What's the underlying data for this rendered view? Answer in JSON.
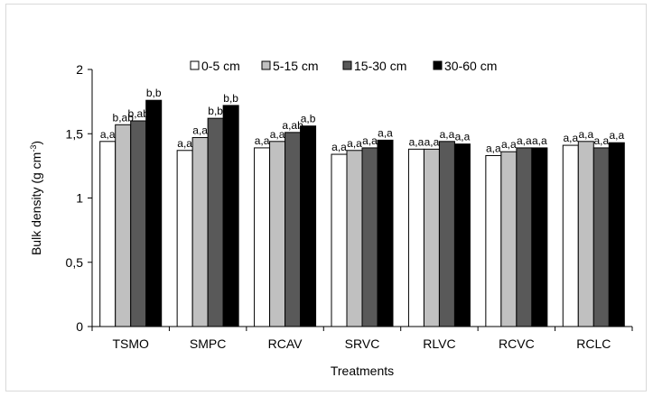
{
  "chart_data": {
    "type": "bar",
    "title": "",
    "xlabel": "Treatments",
    "ylabel": "Bulk density (g cm",
    "ylabel_superscript": "-3",
    "ylabel_suffix": ")",
    "ylim": [
      0,
      2
    ],
    "yticks": [
      "0",
      "0,5",
      "1",
      "1,5",
      "2"
    ],
    "grid": false,
    "legend_position": "top",
    "categories": [
      "TSMO",
      "SMPC",
      "RCAV",
      "SRVC",
      "RLVC",
      "RCVC",
      "RCLC"
    ],
    "series": [
      {
        "name": "0-5 cm",
        "color": "#ffffff",
        "values": [
          1.44,
          1.37,
          1.39,
          1.34,
          1.38,
          1.33,
          1.41
        ],
        "labels": [
          "a,a",
          "a,a",
          "a,a",
          "a,a",
          "a,a",
          "a,a",
          "a,a"
        ]
      },
      {
        "name": "5-15 cm",
        "color": "#c0c0c0",
        "values": [
          1.57,
          1.47,
          1.44,
          1.37,
          1.38,
          1.36,
          1.44
        ],
        "labels": [
          "b,ab",
          "a,a",
          "a,a",
          "a,a",
          "a,a",
          "a,a",
          "a,a"
        ]
      },
      {
        "name": "15-30 cm",
        "color": "#595959",
        "values": [
          1.6,
          1.62,
          1.51,
          1.39,
          1.44,
          1.39,
          1.39
        ],
        "labels": [
          "b,ab",
          "b,b",
          "a,ab",
          "a,a",
          "a,a",
          "a,a",
          "a,a"
        ]
      },
      {
        "name": "30-60 cm",
        "color": "#000000",
        "values": [
          1.76,
          1.72,
          1.56,
          1.45,
          1.42,
          1.39,
          1.43
        ],
        "labels": [
          "b,b",
          "b,b",
          "a,b",
          "a,a",
          "a,a",
          "a,a",
          "a,a"
        ]
      }
    ]
  }
}
